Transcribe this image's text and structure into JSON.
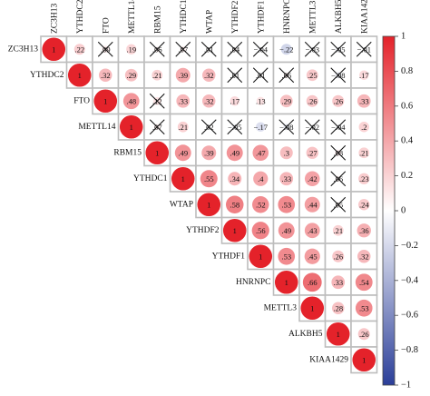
{
  "chart_data": {
    "type": "heatmap",
    "subtype": "correlation-matrix-upper-triangle-circles",
    "variables": [
      "ZC3H13",
      "YTHDC2",
      "FTO",
      "METTL14",
      "RBM15",
      "YTHDC1",
      "WTAP",
      "YTHDF2",
      "YTHDF1",
      "HNRNPC",
      "METTL3",
      "ALKBH5",
      "KIAA1429"
    ],
    "matrix": [
      [
        1,
        0.22,
        0.09,
        0.19,
        0.06,
        0.07,
        0.01,
        0.04,
        -0.04,
        -0.22,
        -0.03,
        -0.05,
        -0.01
      ],
      [
        null,
        1,
        0.32,
        0.29,
        0.21,
        0.39,
        0.32,
        0.01,
        0.01,
        0.06,
        0.25,
        -0.08,
        0.17
      ],
      [
        null,
        null,
        1,
        0.48,
        0.12,
        0.33,
        0.32,
        0.17,
        0.13,
        0.29,
        0.26,
        0.26,
        0.33
      ],
      [
        null,
        null,
        null,
        1,
        0.07,
        0.21,
        0.02,
        -0.05,
        -0.17,
        -0.08,
        -0.02,
        -0.04,
        0.2
      ],
      [
        null,
        null,
        null,
        null,
        1,
        0.49,
        0.39,
        0.49,
        0.47,
        0.3,
        0.27,
        0.08,
        0.21
      ],
      [
        null,
        null,
        null,
        null,
        null,
        1,
        0.55,
        0.34,
        0.4,
        0.33,
        0.42,
        0.06,
        0.23
      ],
      [
        null,
        null,
        null,
        null,
        null,
        null,
        1,
        0.58,
        0.52,
        0.53,
        0.44,
        0.05,
        0.24
      ],
      [
        null,
        null,
        null,
        null,
        null,
        null,
        null,
        1,
        0.56,
        0.49,
        0.43,
        0.21,
        0.36
      ],
      [
        null,
        null,
        null,
        null,
        null,
        null,
        null,
        null,
        1,
        0.53,
        0.45,
        0.26,
        0.32
      ],
      [
        null,
        null,
        null,
        null,
        null,
        null,
        null,
        null,
        null,
        1,
        0.66,
        0.33,
        0.54
      ],
      [
        null,
        null,
        null,
        null,
        null,
        null,
        null,
        null,
        null,
        null,
        1,
        0.28,
        0.53
      ],
      [
        null,
        null,
        null,
        null,
        null,
        null,
        null,
        null,
        null,
        null,
        null,
        1,
        0.26
      ],
      [
        null,
        null,
        null,
        null,
        null,
        null,
        null,
        null,
        null,
        null,
        null,
        null,
        1
      ]
    ],
    "crossed_out": [
      [
        0,
        2
      ],
      [
        0,
        4
      ],
      [
        0,
        5
      ],
      [
        0,
        6
      ],
      [
        0,
        7
      ],
      [
        0,
        8
      ],
      [
        0,
        10
      ],
      [
        0,
        11
      ],
      [
        0,
        12
      ],
      [
        1,
        7
      ],
      [
        1,
        8
      ],
      [
        1,
        9
      ],
      [
        1,
        11
      ],
      [
        2,
        4
      ],
      [
        3,
        4
      ],
      [
        3,
        6
      ],
      [
        3,
        7
      ],
      [
        3,
        9
      ],
      [
        3,
        10
      ],
      [
        3,
        11
      ],
      [
        4,
        11
      ],
      [
        5,
        11
      ],
      [
        6,
        11
      ]
    ],
    "color_scale": {
      "min": -1,
      "max": 1,
      "low_color": "#2b3f99",
      "mid_color": "#ffffff",
      "high_color": "#e4222a",
      "ticks": [
        "1",
        "0.8",
        "0.6",
        "0.4",
        "0.2",
        "0",
        "−0.2",
        "−0.4",
        "−0.6",
        "−0.8",
        "−1"
      ]
    },
    "legend_position": "right"
  }
}
